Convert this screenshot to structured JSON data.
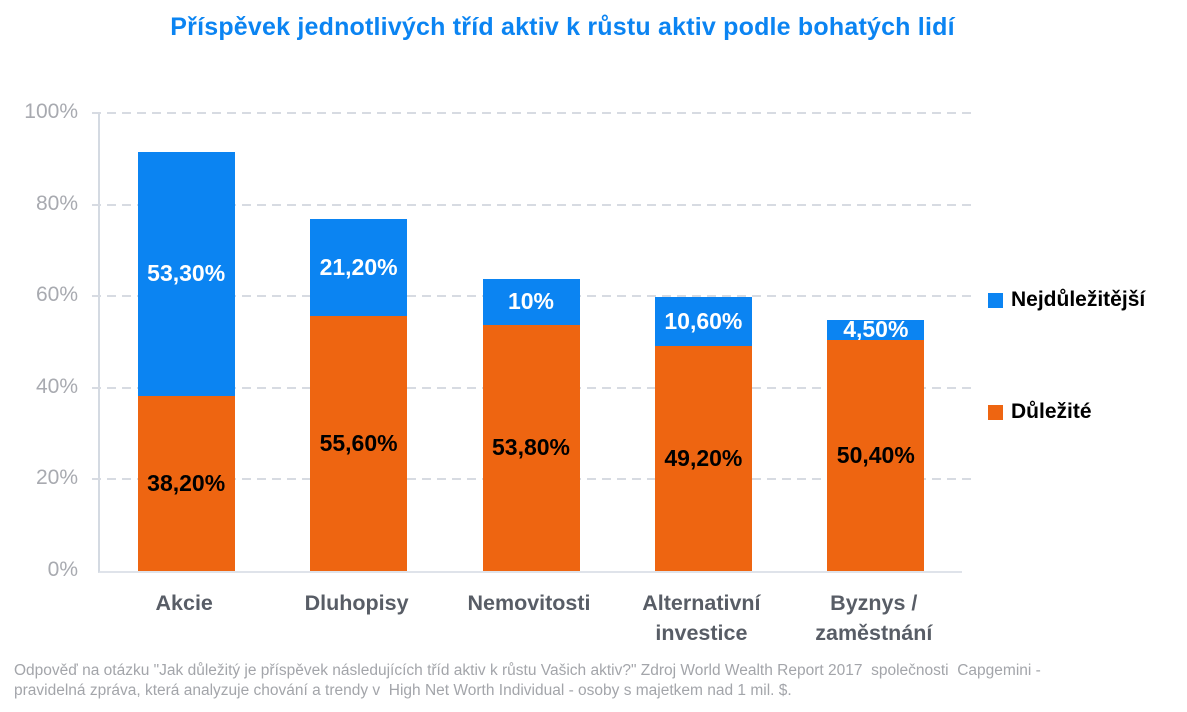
{
  "title": "Příspěvek jednotlivých tříd aktiv k růstu aktiv podle bohatých lidí",
  "colors": {
    "accent_blue": "#0b84f2",
    "orange": "#ee6511",
    "gridline": "#d7dbe2",
    "axis_line": "#d4dae2",
    "y_label": "#a8aab0",
    "category_label": "#585d66",
    "footer_text": "#a3a5aa"
  },
  "chart_data": {
    "type": "bar",
    "stacked": true,
    "title": "Příspěvek jednotlivých tříd aktiv k růstu aktiv podle bohatých lidí",
    "categories": [
      "Akcie",
      "Dluhopisy",
      "Nemovitosti",
      "Alternativní\ninvestice",
      "Byznys /\nzaměstnání"
    ],
    "series": [
      {
        "name": "Důležité",
        "color": "#ee6511",
        "label_color": "#000000",
        "values": [
          38.2,
          55.6,
          53.8,
          49.2,
          50.4
        ],
        "labels": [
          "38,20%",
          "55,60%",
          "53,80%",
          "49,20%",
          "50,40%"
        ]
      },
      {
        "name": "Nejdůležitější",
        "color": "#0b84f2",
        "label_color": "#ffffff",
        "values": [
          53.3,
          21.2,
          10,
          10.6,
          4.5
        ],
        "labels": [
          "53,30%",
          "21,20%",
          "10%",
          "10,60%",
          "4,50%"
        ]
      }
    ],
    "xlabel": "",
    "ylabel": "",
    "ylim": [
      0,
      100
    ],
    "y_ticks": [
      0,
      20,
      40,
      60,
      80,
      100
    ],
    "y_tick_labels": [
      "0%",
      "20%",
      "40%",
      "60%",
      "80%",
      "100%"
    ],
    "grid": "horizontal-dashed",
    "legend_position": "right"
  },
  "legend": {
    "items": [
      {
        "label": "Nejdůležitější",
        "color": "#0b84f2"
      },
      {
        "label": "Důležité",
        "color": "#ee6511"
      }
    ]
  },
  "footer": {
    "line1": "Odpověď na otázku \"Jak důležitý je příspěvek následujících tříd aktiv k růstu Vašich aktiv?\" Zdroj World Wealth Report 2017  společnosti  Capgemini -",
    "line2": "pravidelná zpráva, která analyzuje chování a trendy v  High Net Worth Individual - osoby s majetkem nad 1 mil. $."
  }
}
